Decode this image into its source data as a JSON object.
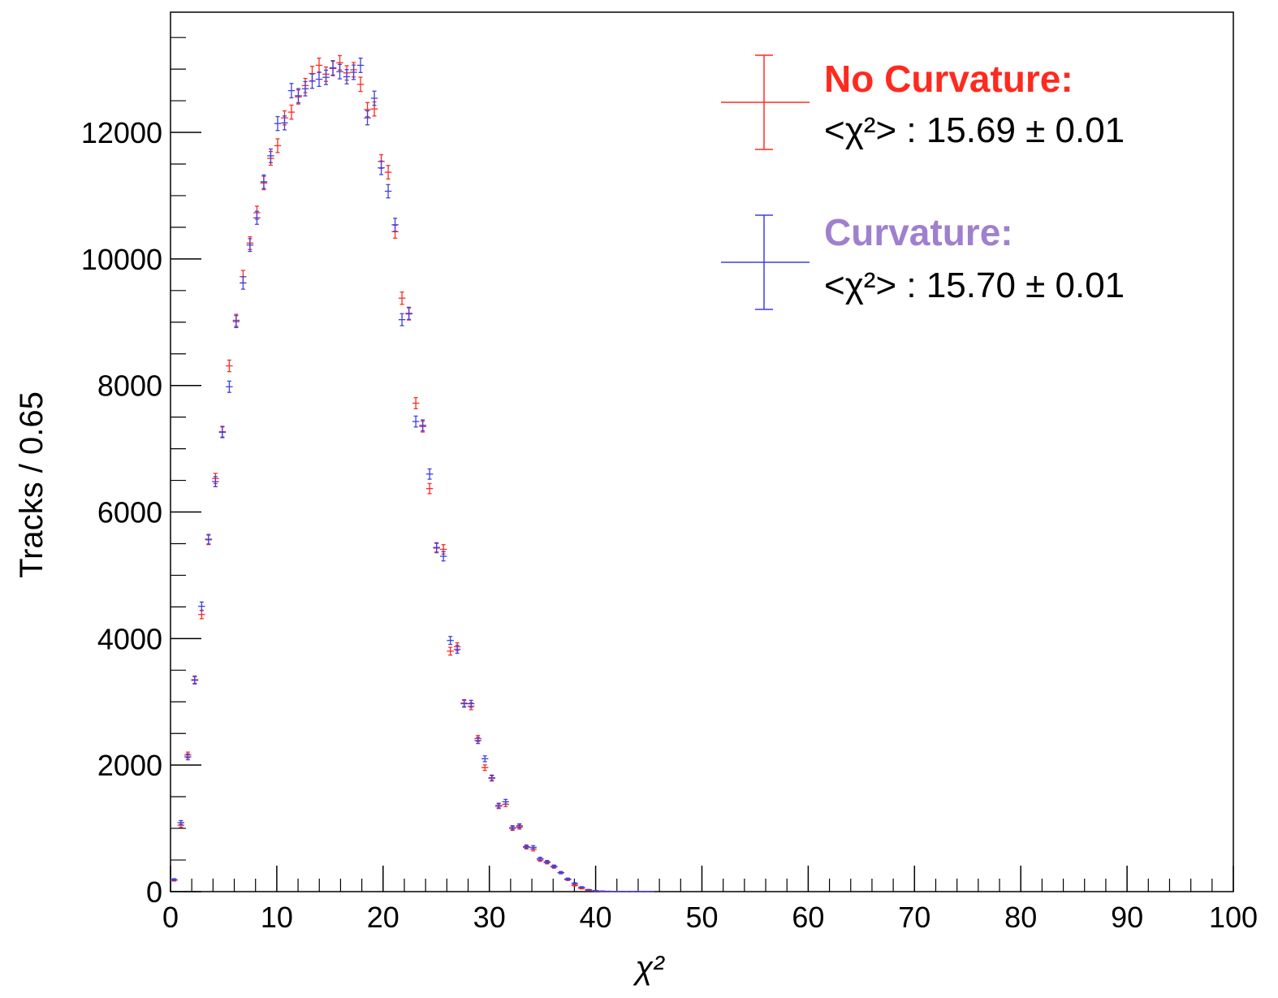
{
  "chart_data": {
    "type": "scatter",
    "title": "",
    "xlabel": "χ²",
    "ylabel": "Tracks / 0.65",
    "xlim": [
      0,
      100
    ],
    "ylim": [
      0,
      13900
    ],
    "x_ticks": [
      "0",
      "10",
      "20",
      "30",
      "40",
      "50",
      "60",
      "70",
      "80",
      "90",
      "100"
    ],
    "y_ticks": [
      "0",
      "2000",
      "4000",
      "6000",
      "8000",
      "10000",
      "12000"
    ],
    "grid": false,
    "legend_position": "top-right",
    "bin_width": 0.65,
    "series": [
      {
        "name": "No Curvature:",
        "stat_label": "<χ²> : 15.69 ± 0.01",
        "color": "#ff2a1f",
        "x": [
          0.33,
          0.98,
          1.63,
          2.28,
          2.93,
          3.58,
          4.23,
          4.88,
          5.53,
          6.18,
          6.83,
          7.48,
          8.13,
          8.78,
          9.43,
          10.08,
          10.73,
          11.38,
          12.03,
          12.68,
          13.33,
          13.98,
          14.63,
          15.28,
          15.93,
          16.58,
          17.23,
          17.88,
          18.53,
          19.18,
          19.83,
          20.48,
          21.13,
          21.78,
          22.43,
          23.08,
          23.73,
          24.38,
          25.03,
          25.68,
          26.33,
          26.98,
          27.63,
          28.28,
          28.93,
          29.58,
          30.23,
          30.88,
          31.53,
          32.18,
          32.83,
          33.48,
          34.13,
          34.78,
          35.43,
          36.08,
          36.73,
          37.38,
          38.03,
          38.68,
          39.33,
          39.98,
          40.63,
          41.28,
          41.93,
          42.58,
          43.23,
          43.88,
          44.53,
          45.18
        ],
        "y": [
          180,
          1050,
          2160,
          3350,
          4380,
          5560,
          6530,
          7270,
          8310,
          9030,
          9720,
          10250,
          10730,
          11200,
          11590,
          11790,
          12230,
          12320,
          12560,
          12740,
          12930,
          13060,
          12920,
          13010,
          13100,
          12940,
          12990,
          12760,
          12360,
          12370,
          11540,
          11370,
          10430,
          9380,
          9130,
          7720,
          7350,
          6370,
          5430,
          5410,
          3800,
          3870,
          2980,
          2930,
          2420,
          1960,
          1790,
          1350,
          1380,
          1000,
          1020,
          700,
          670,
          500,
          460,
          390,
          300,
          190,
          100,
          50,
          20,
          10,
          5,
          3,
          2,
          1,
          1,
          1,
          1,
          1
        ],
        "y_err": [
          13,
          32,
          46,
          58,
          66,
          75,
          81,
          85,
          91,
          95,
          99,
          101,
          104,
          106,
          108,
          109,
          111,
          111,
          112,
          113,
          114,
          114,
          114,
          114,
          114,
          114,
          114,
          113,
          111,
          111,
          107,
          107,
          102,
          97,
          96,
          88,
          86,
          80,
          74,
          74,
          62,
          62,
          55,
          54,
          49,
          44,
          42,
          37,
          37,
          32,
          32,
          26,
          26,
          22,
          21,
          20,
          17,
          14,
          10,
          7,
          4,
          3,
          2,
          2,
          1,
          1,
          1,
          1,
          1,
          1
        ]
      },
      {
        "name": "Curvature:",
        "stat_label": "<χ²> : 15.70 ± 0.01",
        "color": "#3f3fe0",
        "legend_color": "#a07fcf",
        "x": [
          0.33,
          0.98,
          1.63,
          2.28,
          2.93,
          3.58,
          4.23,
          4.88,
          5.53,
          6.18,
          6.83,
          7.48,
          8.13,
          8.78,
          9.43,
          10.08,
          10.73,
          11.38,
          12.03,
          12.68,
          13.33,
          13.98,
          14.63,
          15.28,
          15.93,
          16.58,
          17.23,
          17.88,
          18.53,
          19.18,
          19.83,
          20.48,
          21.13,
          21.78,
          22.43,
          23.08,
          23.73,
          24.38,
          25.03,
          25.68,
          26.33,
          26.98,
          27.63,
          28.28,
          28.93,
          29.58,
          30.23,
          30.88,
          31.53,
          32.18,
          32.83,
          33.48,
          34.13,
          34.78,
          35.43,
          36.08,
          36.73,
          37.38,
          38.03,
          38.68,
          39.33,
          39.98,
          40.63,
          41.28,
          41.93,
          42.58,
          43.23,
          43.88,
          44.53,
          45.18
        ],
        "y": [
          190,
          1090,
          2130,
          3340,
          4510,
          5570,
          6480,
          7260,
          7980,
          9010,
          9620,
          10220,
          10650,
          11220,
          11630,
          12140,
          12150,
          12660,
          12580,
          12690,
          12810,
          12840,
          12870,
          13020,
          12960,
          12880,
          12950,
          13060,
          12230,
          12540,
          11440,
          11070,
          10540,
          9040,
          9140,
          7430,
          7370,
          6600,
          5440,
          5300,
          3970,
          3830,
          2970,
          2970,
          2390,
          2100,
          1800,
          1360,
          1420,
          1010,
          1040,
          710,
          700,
          520,
          470,
          400,
          300,
          200,
          130,
          70,
          30,
          15,
          8,
          4,
          2,
          1,
          1,
          1,
          1,
          1
        ],
        "y_err": [
          14,
          33,
          46,
          58,
          67,
          75,
          80,
          85,
          89,
          95,
          98,
          101,
          103,
          106,
          108,
          110,
          110,
          113,
          112,
          113,
          113,
          113,
          113,
          114,
          114,
          113,
          114,
          114,
          111,
          112,
          107,
          105,
          103,
          95,
          96,
          86,
          86,
          81,
          74,
          73,
          63,
          62,
          54,
          54,
          49,
          46,
          42,
          37,
          38,
          32,
          32,
          27,
          26,
          23,
          22,
          20,
          17,
          14,
          11,
          8,
          5,
          4,
          3,
          2,
          1,
          1,
          1,
          1,
          1,
          1
        ]
      }
    ]
  }
}
